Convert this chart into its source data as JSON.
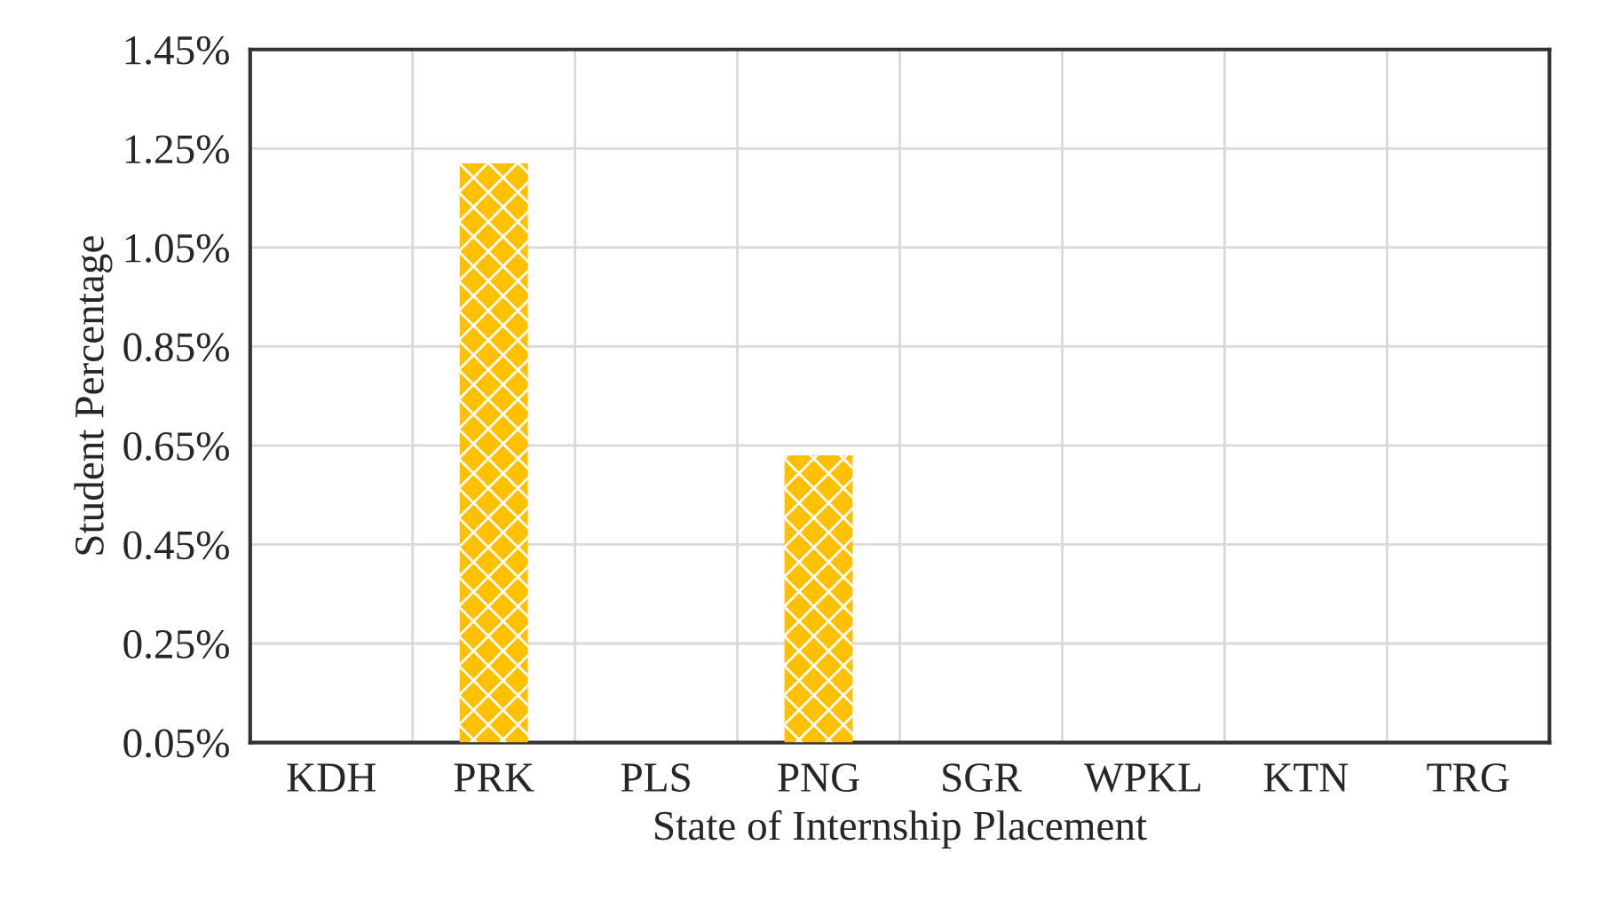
{
  "chart_data": {
    "type": "bar",
    "xlabel": "State of Internship Placement",
    "ylabel": "Student Percentage",
    "categories": [
      "KDH",
      "PRK",
      "PLS",
      "PNG",
      "SGR",
      "WPKL",
      "KTN",
      "TRG"
    ],
    "values": [
      null,
      1.22,
      null,
      0.63,
      null,
      null,
      null,
      null
    ],
    "color": "#ffc000",
    "ylim": [
      0.05,
      1.45
    ],
    "yticks": [
      {
        "value": 0.05,
        "label": "0.05%"
      },
      {
        "value": 0.25,
        "label": "0.25%"
      },
      {
        "value": 0.45,
        "label": "0.45%"
      },
      {
        "value": 0.65,
        "label": "0.65%"
      },
      {
        "value": 0.85,
        "label": "0.85%"
      },
      {
        "value": 1.05,
        "label": "1.05%"
      },
      {
        "value": 1.25,
        "label": "1.25%"
      },
      {
        "value": 1.45,
        "label": "1.45%"
      }
    ],
    "grid": true
  }
}
